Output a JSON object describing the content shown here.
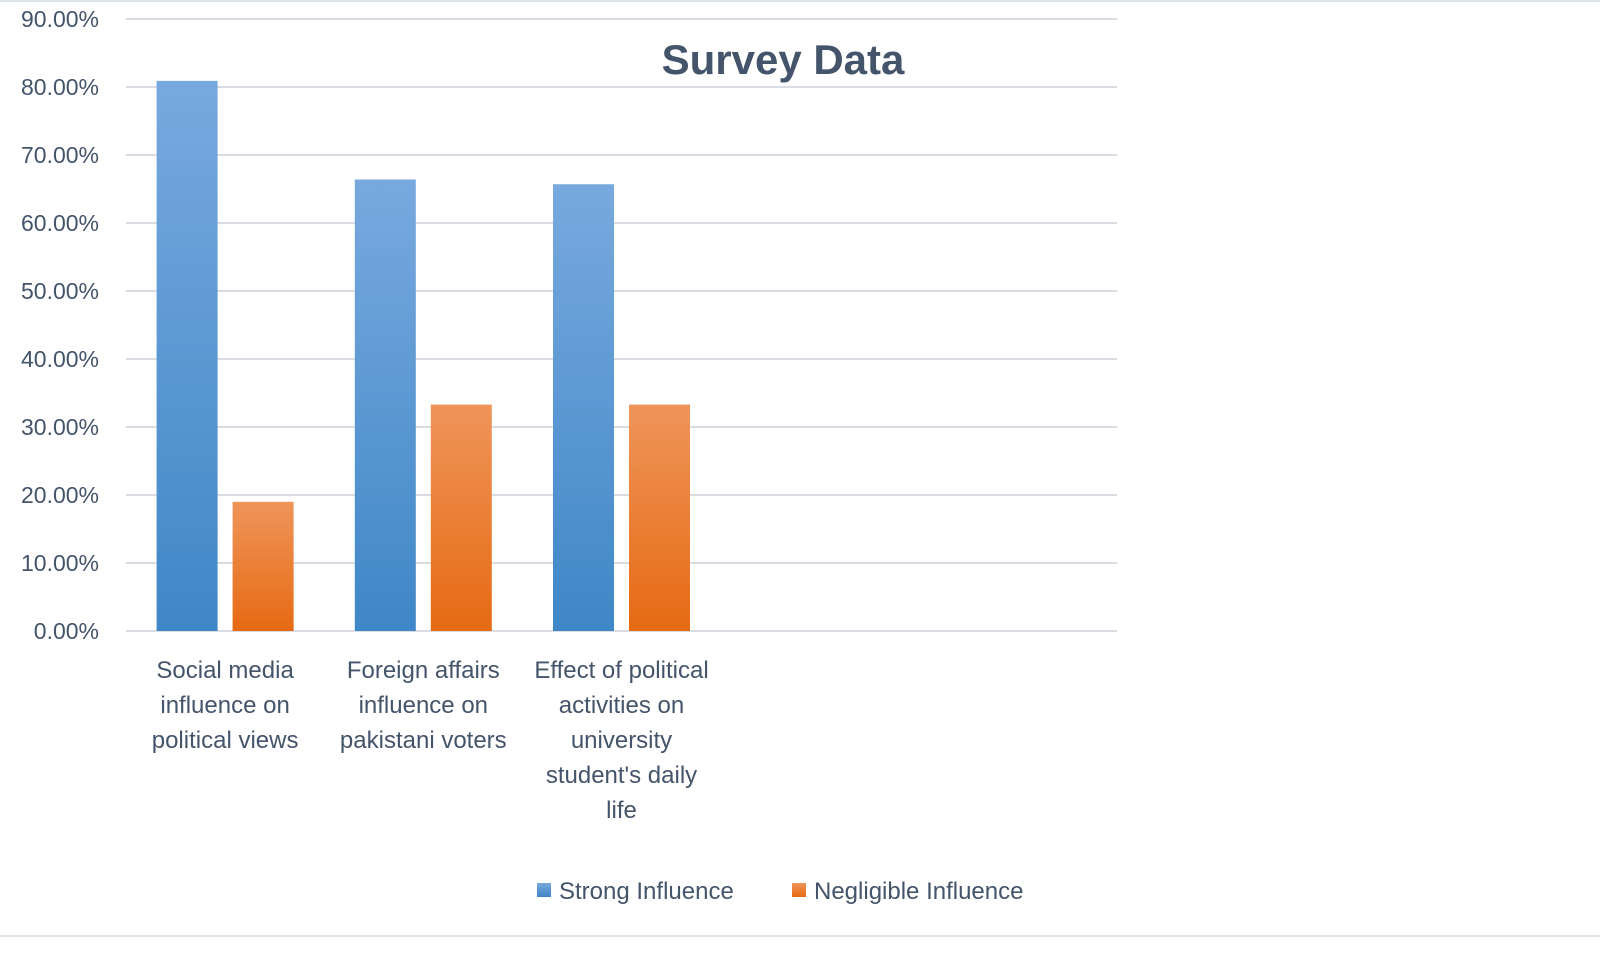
{
  "chart_data": {
    "type": "bar",
    "title": "Survey Data",
    "xlabel": "",
    "ylabel": "",
    "ylim": [
      0,
      0.9
    ],
    "ytick_step": 0.1,
    "ytick_labels": [
      "0.00%",
      "10.00%",
      "20.00%",
      "30.00%",
      "40.00%",
      "50.00%",
      "60.00%",
      "70.00%",
      "80.00%",
      "90.00%"
    ],
    "grid": true,
    "legend_position": "bottom",
    "categories": [
      [
        "Social media",
        "influence on",
        "political views"
      ],
      [
        "Foreign affairs",
        "influence on",
        "pakistani voters"
      ],
      [
        "Effect of political",
        "activities  on",
        "university",
        "student's daily",
        "life"
      ]
    ],
    "slots": 5,
    "series": [
      {
        "name": "Strong Influence",
        "values": [
          0.809,
          0.664,
          0.657
        ],
        "color_top": "#78a9de",
        "color_bottom": "#3f87c7"
      },
      {
        "name": "Negligible Influence",
        "values": [
          0.19,
          0.333,
          0.333
        ],
        "color_top": "#ef955a",
        "color_bottom": "#e66a13"
      }
    ]
  }
}
